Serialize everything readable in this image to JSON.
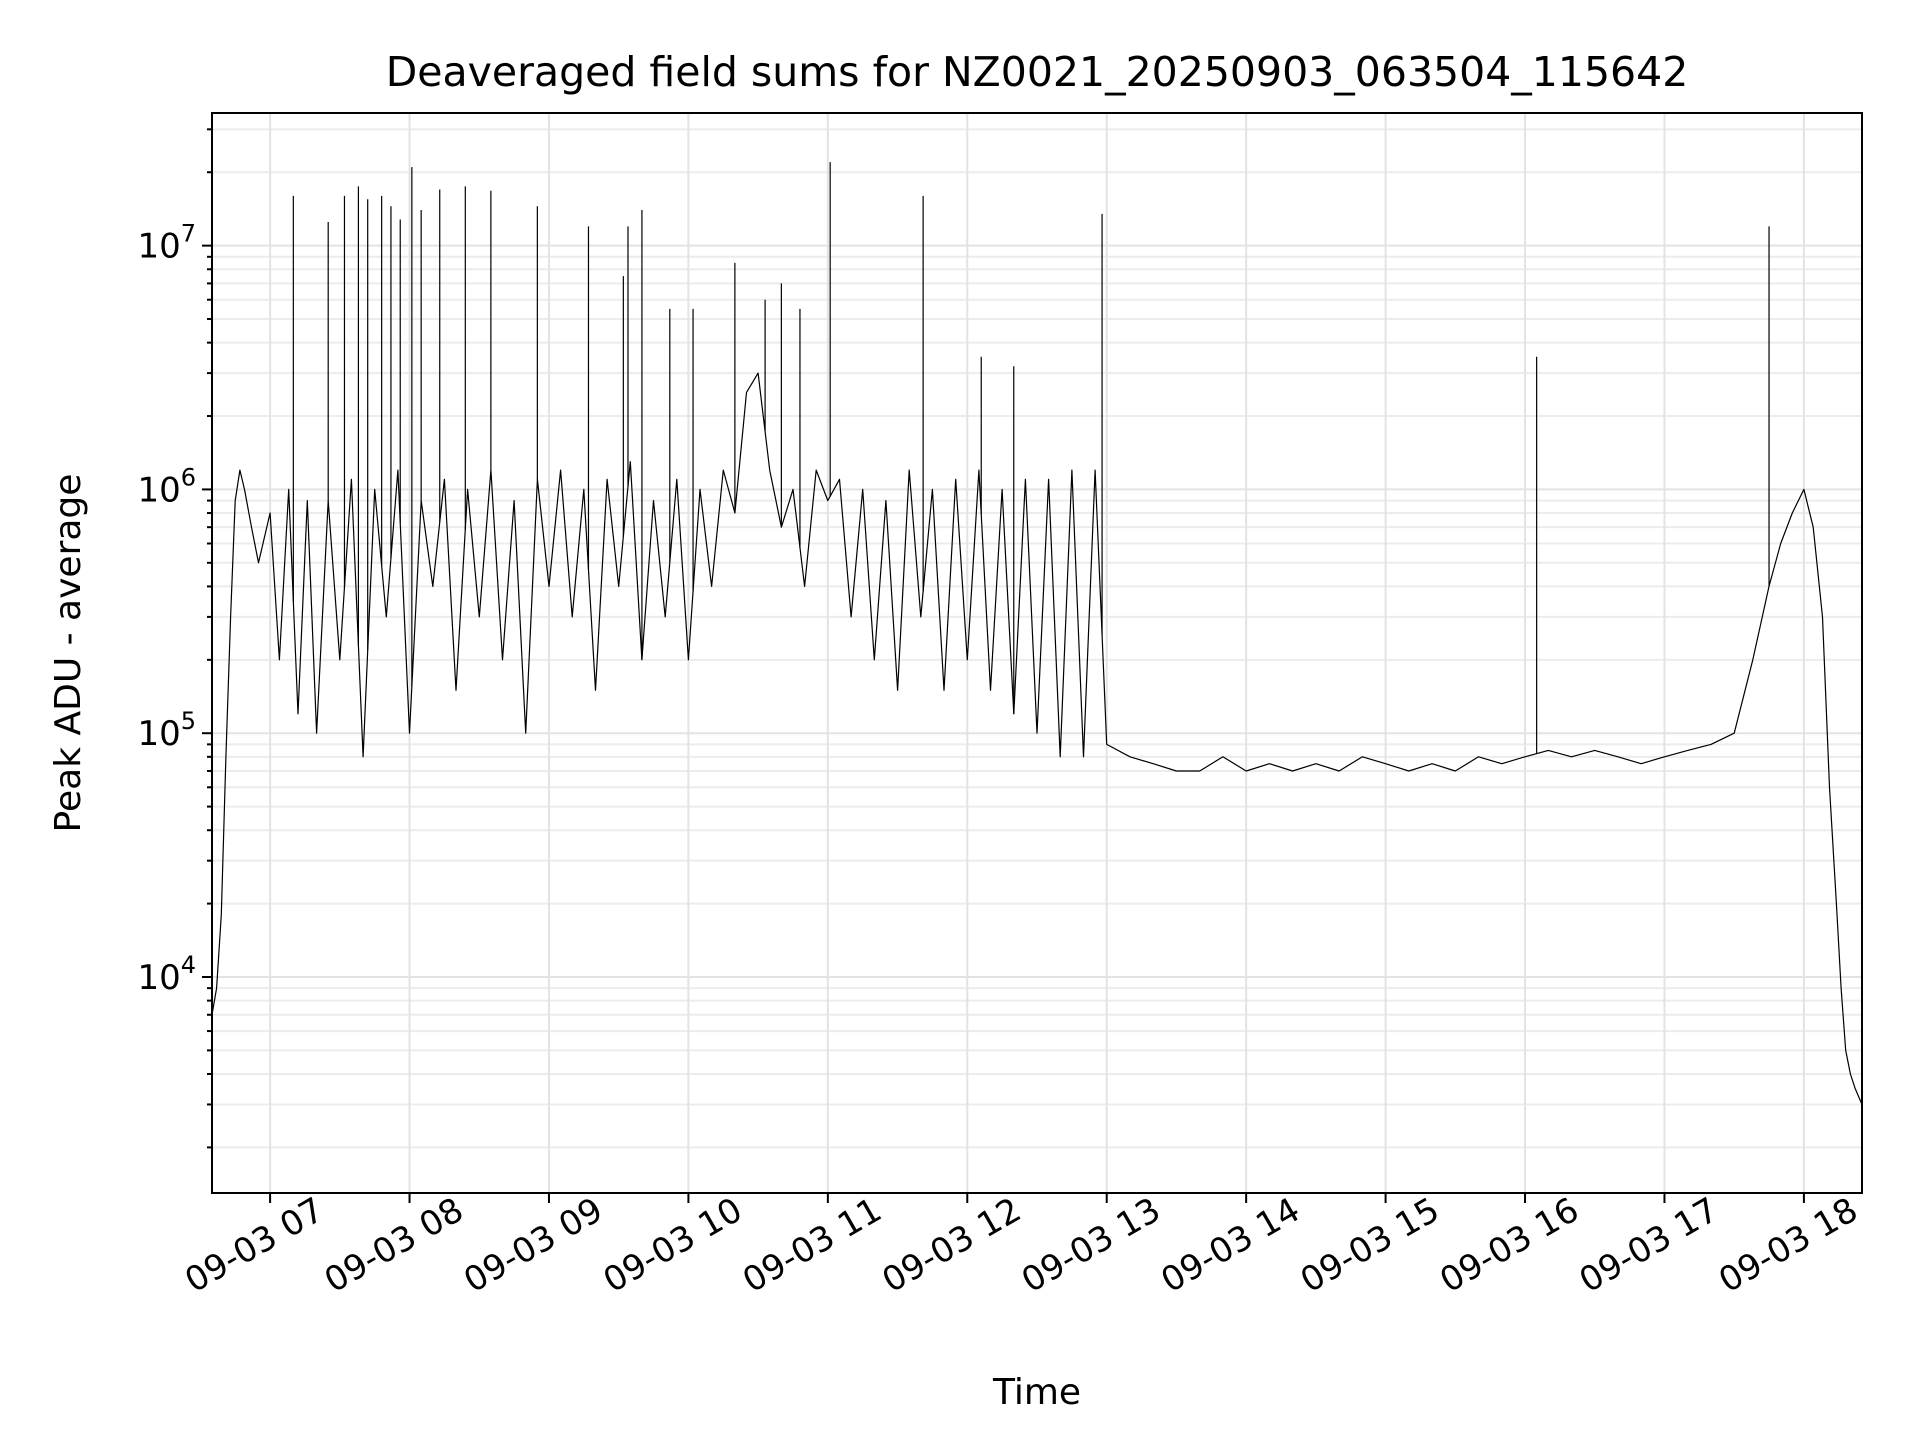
{
  "chart_data": {
    "type": "line",
    "title": "Deaveraged field sums for NZ0021_20250903_063504_115642",
    "xlabel": "Time",
    "ylabel": "Peak ADU - average",
    "yscale": "log",
    "xlim": [
      "09-03 06:35",
      "09-03 18:25"
    ],
    "ylim": [
      1300,
      35000000
    ],
    "grid": true,
    "x_ticks": [
      {
        "value": "09-03 07:00",
        "label": "09-03 07"
      },
      {
        "value": "09-03 08:00",
        "label": "09-03 08"
      },
      {
        "value": "09-03 09:00",
        "label": "09-03 09"
      },
      {
        "value": "09-03 10:00",
        "label": "09-03 10"
      },
      {
        "value": "09-03 11:00",
        "label": "09-03 11"
      },
      {
        "value": "09-03 12:00",
        "label": "09-03 12"
      },
      {
        "value": "09-03 13:00",
        "label": "09-03 13"
      },
      {
        "value": "09-03 14:00",
        "label": "09-03 14"
      },
      {
        "value": "09-03 15:00",
        "label": "09-03 15"
      },
      {
        "value": "09-03 16:00",
        "label": "09-03 16"
      },
      {
        "value": "09-03 17:00",
        "label": "09-03 17"
      },
      {
        "value": "09-03 18:00",
        "label": "09-03 18"
      }
    ],
    "y_ticks": [
      {
        "value": 10000,
        "base": "10",
        "exp": "4"
      },
      {
        "value": 100000,
        "base": "10",
        "exp": "5"
      },
      {
        "value": 1000000,
        "base": "10",
        "exp": "6"
      },
      {
        "value": 10000000,
        "base": "10",
        "exp": "7"
      }
    ],
    "line_color": "#000000",
    "series": [
      {
        "x": [
          "09-03 06:35",
          "09-03 06:37",
          "09-03 06:39",
          "09-03 06:41",
          "09-03 06:43",
          "09-03 06:45",
          "09-03 06:47",
          "09-03 06:49",
          "09-03 06:52",
          "09-03 06:55",
          "09-03 07:00",
          "09-03 07:04",
          "09-03 07:08",
          "09-03 07:12",
          "09-03 07:16",
          "09-03 07:20",
          "09-03 07:25",
          "09-03 07:30",
          "09-03 07:35",
          "09-03 07:40",
          "09-03 07:45",
          "09-03 07:50",
          "09-03 07:55",
          "09-03 08:00",
          "09-03 08:05",
          "09-03 08:10",
          "09-03 08:15",
          "09-03 08:20",
          "09-03 08:25",
          "09-03 08:30",
          "09-03 08:35",
          "09-03 08:40",
          "09-03 08:45",
          "09-03 08:50",
          "09-03 08:55",
          "09-03 09:00",
          "09-03 09:05",
          "09-03 09:10",
          "09-03 09:15",
          "09-03 09:20",
          "09-03 09:25",
          "09-03 09:30",
          "09-03 09:35",
          "09-03 09:40",
          "09-03 09:45",
          "09-03 09:50",
          "09-03 09:55",
          "09-03 10:00",
          "09-03 10:05",
          "09-03 10:10",
          "09-03 10:15",
          "09-03 10:20",
          "09-03 10:25",
          "09-03 10:30",
          "09-03 10:35",
          "09-03 10:40",
          "09-03 10:45",
          "09-03 10:50",
          "09-03 10:55",
          "09-03 11:00",
          "09-03 11:05",
          "09-03 11:10",
          "09-03 11:15",
          "09-03 11:20",
          "09-03 11:25",
          "09-03 11:30",
          "09-03 11:35",
          "09-03 11:40",
          "09-03 11:45",
          "09-03 11:50",
          "09-03 11:55",
          "09-03 12:00",
          "09-03 12:05",
          "09-03 12:10",
          "09-03 12:15",
          "09-03 12:20",
          "09-03 12:25",
          "09-03 12:30",
          "09-03 12:35",
          "09-03 12:40",
          "09-03 12:45",
          "09-03 12:50",
          "09-03 12:55",
          "09-03 13:00",
          "09-03 13:10",
          "09-03 13:20",
          "09-03 13:30",
          "09-03 13:40",
          "09-03 13:50",
          "09-03 14:00",
          "09-03 14:10",
          "09-03 14:20",
          "09-03 14:30",
          "09-03 14:40",
          "09-03 14:50",
          "09-03 15:00",
          "09-03 15:10",
          "09-03 15:20",
          "09-03 15:30",
          "09-03 15:40",
          "09-03 15:50",
          "09-03 16:00",
          "09-03 16:10",
          "09-03 16:20",
          "09-03 16:30",
          "09-03 16:40",
          "09-03 16:50",
          "09-03 17:00",
          "09-03 17:10",
          "09-03 17:20",
          "09-03 17:30",
          "09-03 17:38",
          "09-03 17:45",
          "09-03 17:50",
          "09-03 17:55",
          "09-03 18:00",
          "09-03 18:04",
          "09-03 18:08",
          "09-03 18:11",
          "09-03 18:14",
          "09-03 18:16",
          "09-03 18:18",
          "09-03 18:20",
          "09-03 18:22",
          "09-03 18:25"
        ],
        "values": [
          7000,
          9000,
          18000,
          80000,
          300000,
          900000,
          1200000,
          1000000,
          700000,
          500000,
          800000,
          200000,
          1000000,
          120000,
          900000,
          100000,
          900000,
          200000,
          1100000,
          80000,
          1000000,
          300000,
          1200000,
          100000,
          900000,
          400000,
          1100000,
          150000,
          1000000,
          300000,
          1200000,
          200000,
          900000,
          100000,
          1100000,
          400000,
          1200000,
          300000,
          1000000,
          150000,
          1100000,
          400000,
          1300000,
          200000,
          900000,
          300000,
          1100000,
          200000,
          1000000,
          400000,
          1200000,
          800000,
          2500000,
          3000000,
          1200000,
          700000,
          1000000,
          400000,
          1200000,
          900000,
          1100000,
          300000,
          1000000,
          200000,
          900000,
          150000,
          1200000,
          300000,
          1000000,
          150000,
          1100000,
          200000,
          1200000,
          150000,
          1000000,
          120000,
          1100000,
          100000,
          1100000,
          80000,
          1200000,
          80000,
          1200000,
          90000,
          80000,
          75000,
          70000,
          70000,
          80000,
          70000,
          75000,
          70000,
          75000,
          70000,
          80000,
          75000,
          70000,
          75000,
          70000,
          80000,
          75000,
          80000,
          85000,
          80000,
          85000,
          80000,
          75000,
          80000,
          85000,
          90000,
          100000,
          200000,
          400000,
          600000,
          800000,
          1000000,
          700000,
          300000,
          60000,
          20000,
          9000,
          5000,
          4000,
          3500,
          3000
        ]
      },
      {
        "name": "",
        "x": [
          "09-03 07:10",
          "09-03 07:25",
          "09-03 07:32",
          "09-03 07:38",
          "09-03 07:42",
          "09-03 07:48",
          "09-03 07:52",
          "09-03 07:56",
          "09-03 08:01",
          "09-03 08:05",
          "09-03 08:13",
          "09-03 08:24",
          "09-03 08:35",
          "09-03 08:55",
          "09-03 09:17",
          "09-03 09:32",
          "09-03 09:34",
          "09-03 09:40",
          "09-03 09:52",
          "09-03 10:02",
          "09-03 10:20",
          "09-03 10:33",
          "09-03 10:40",
          "09-03 10:48",
          "09-03 11:01",
          "09-03 11:41",
          "09-03 12:06",
          "09-03 12:20",
          "09-03 12:58",
          "09-03 16:05",
          "09-03 17:45"
        ],
        "values": [
          16000000,
          12500000,
          16000000,
          17500000,
          15500000,
          16000000,
          14500000,
          12800000,
          21000000,
          14000000,
          17000000,
          17500000,
          16800000,
          14500000,
          12000000,
          7500000,
          12000000,
          14000000,
          5500000,
          5500000,
          8500000,
          6000000,
          7000000,
          5500000,
          22000000,
          16000000,
          3500000,
          3200000,
          13500000,
          3500000,
          12000000
        ]
      }
    ]
  }
}
